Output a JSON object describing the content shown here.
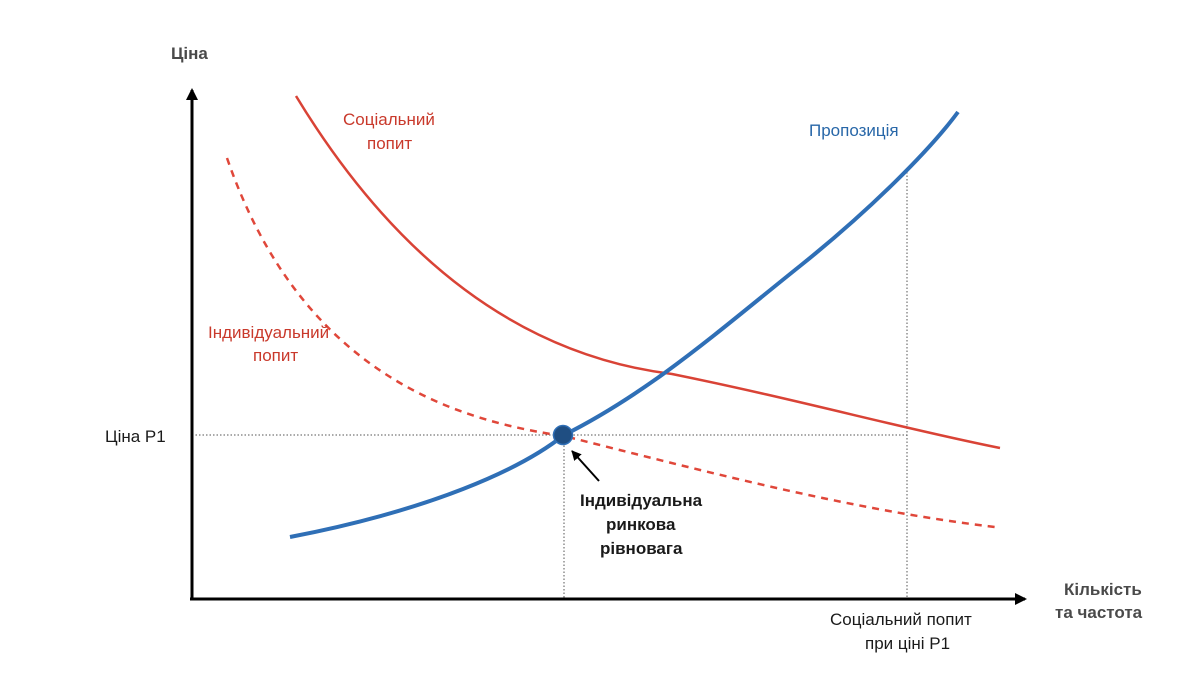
{
  "colors": {
    "social_demand": "#d94336",
    "individual_demand": "#e0473a",
    "supply": "#2f6fb6",
    "equilibrium_point": "#1f4e82",
    "axis": "#000000",
    "guide": "#555555"
  },
  "axes": {
    "y_label": "Ціна",
    "x_label_line1": "Кількість",
    "x_label_line2": "та частота"
  },
  "curves": {
    "social_demand_line1": "Соціальний",
    "social_demand_line2": "попит",
    "individual_demand_line1": "Індивідуальний",
    "individual_demand_line2": "попит",
    "supply": "Пропозиція"
  },
  "markers": {
    "price_p1": "Ціна P1",
    "equilibrium_line1": "Індивідуальна",
    "equilibrium_line2": "ринкова",
    "equilibrium_line3": "рівновага",
    "social_qty_line1": "Соціальний попит",
    "social_qty_line2": "при ціні P1"
  }
}
